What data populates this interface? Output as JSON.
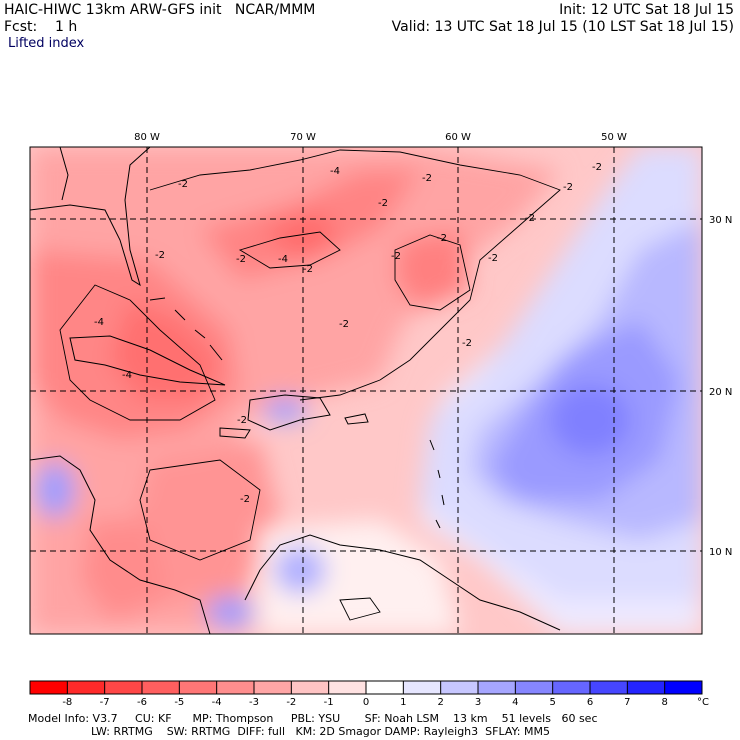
{
  "header": {
    "title_left": "HAIC-HIWC 13km ARW-GFS init   NCAR/MMM",
    "init_time": "Init: 12 UTC Sat 18 Jul 15",
    "fcst_left": "Fcst:    1 h",
    "valid_time": "Valid: 13 UTC Sat 18 Jul 15 (10 LST Sat 18 Jul 15)",
    "field_name": "Lifted index"
  },
  "map": {
    "longitude_labels": [
      "80 W",
      "70 W",
      "60 W",
      "50 W"
    ],
    "latitude_labels": [
      "30 N",
      "20 N",
      "10 N"
    ],
    "contour_label": "-2",
    "contour_label_4": "-4"
  },
  "colorbar": {
    "ticks": [
      "-8",
      "-7",
      "-6",
      "-5",
      "-4",
      "-3",
      "-2",
      "-1",
      "0",
      "1",
      "2",
      "3",
      "4",
      "5",
      "6",
      "7",
      "8"
    ],
    "unit": "°C",
    "colors": [
      "#ff0000",
      "#ff2a2a",
      "#ff4747",
      "#ff5f5f",
      "#ff7676",
      "#ff8e8e",
      "#ffa6a6",
      "#ffc4c4",
      "#ffe2e2",
      "#ffffff",
      "#e6e6ff",
      "#c7c7ff",
      "#a6a6ff",
      "#8686ff",
      "#6666ff",
      "#4646ff",
      "#2424ff",
      "#0000ff"
    ]
  },
  "footer": {
    "line1": "Model Info: V3.7     CU: KF      MP: Thompson     PBL: YSU       SF: Noah LSM    13 km    51 levels   60 sec",
    "line2": "                  LW: RRTMG    SW: RRTMG  DIFF: full   KM: 2D Smagor DAMP: Rayleigh3  SFLAY: MM5"
  }
}
